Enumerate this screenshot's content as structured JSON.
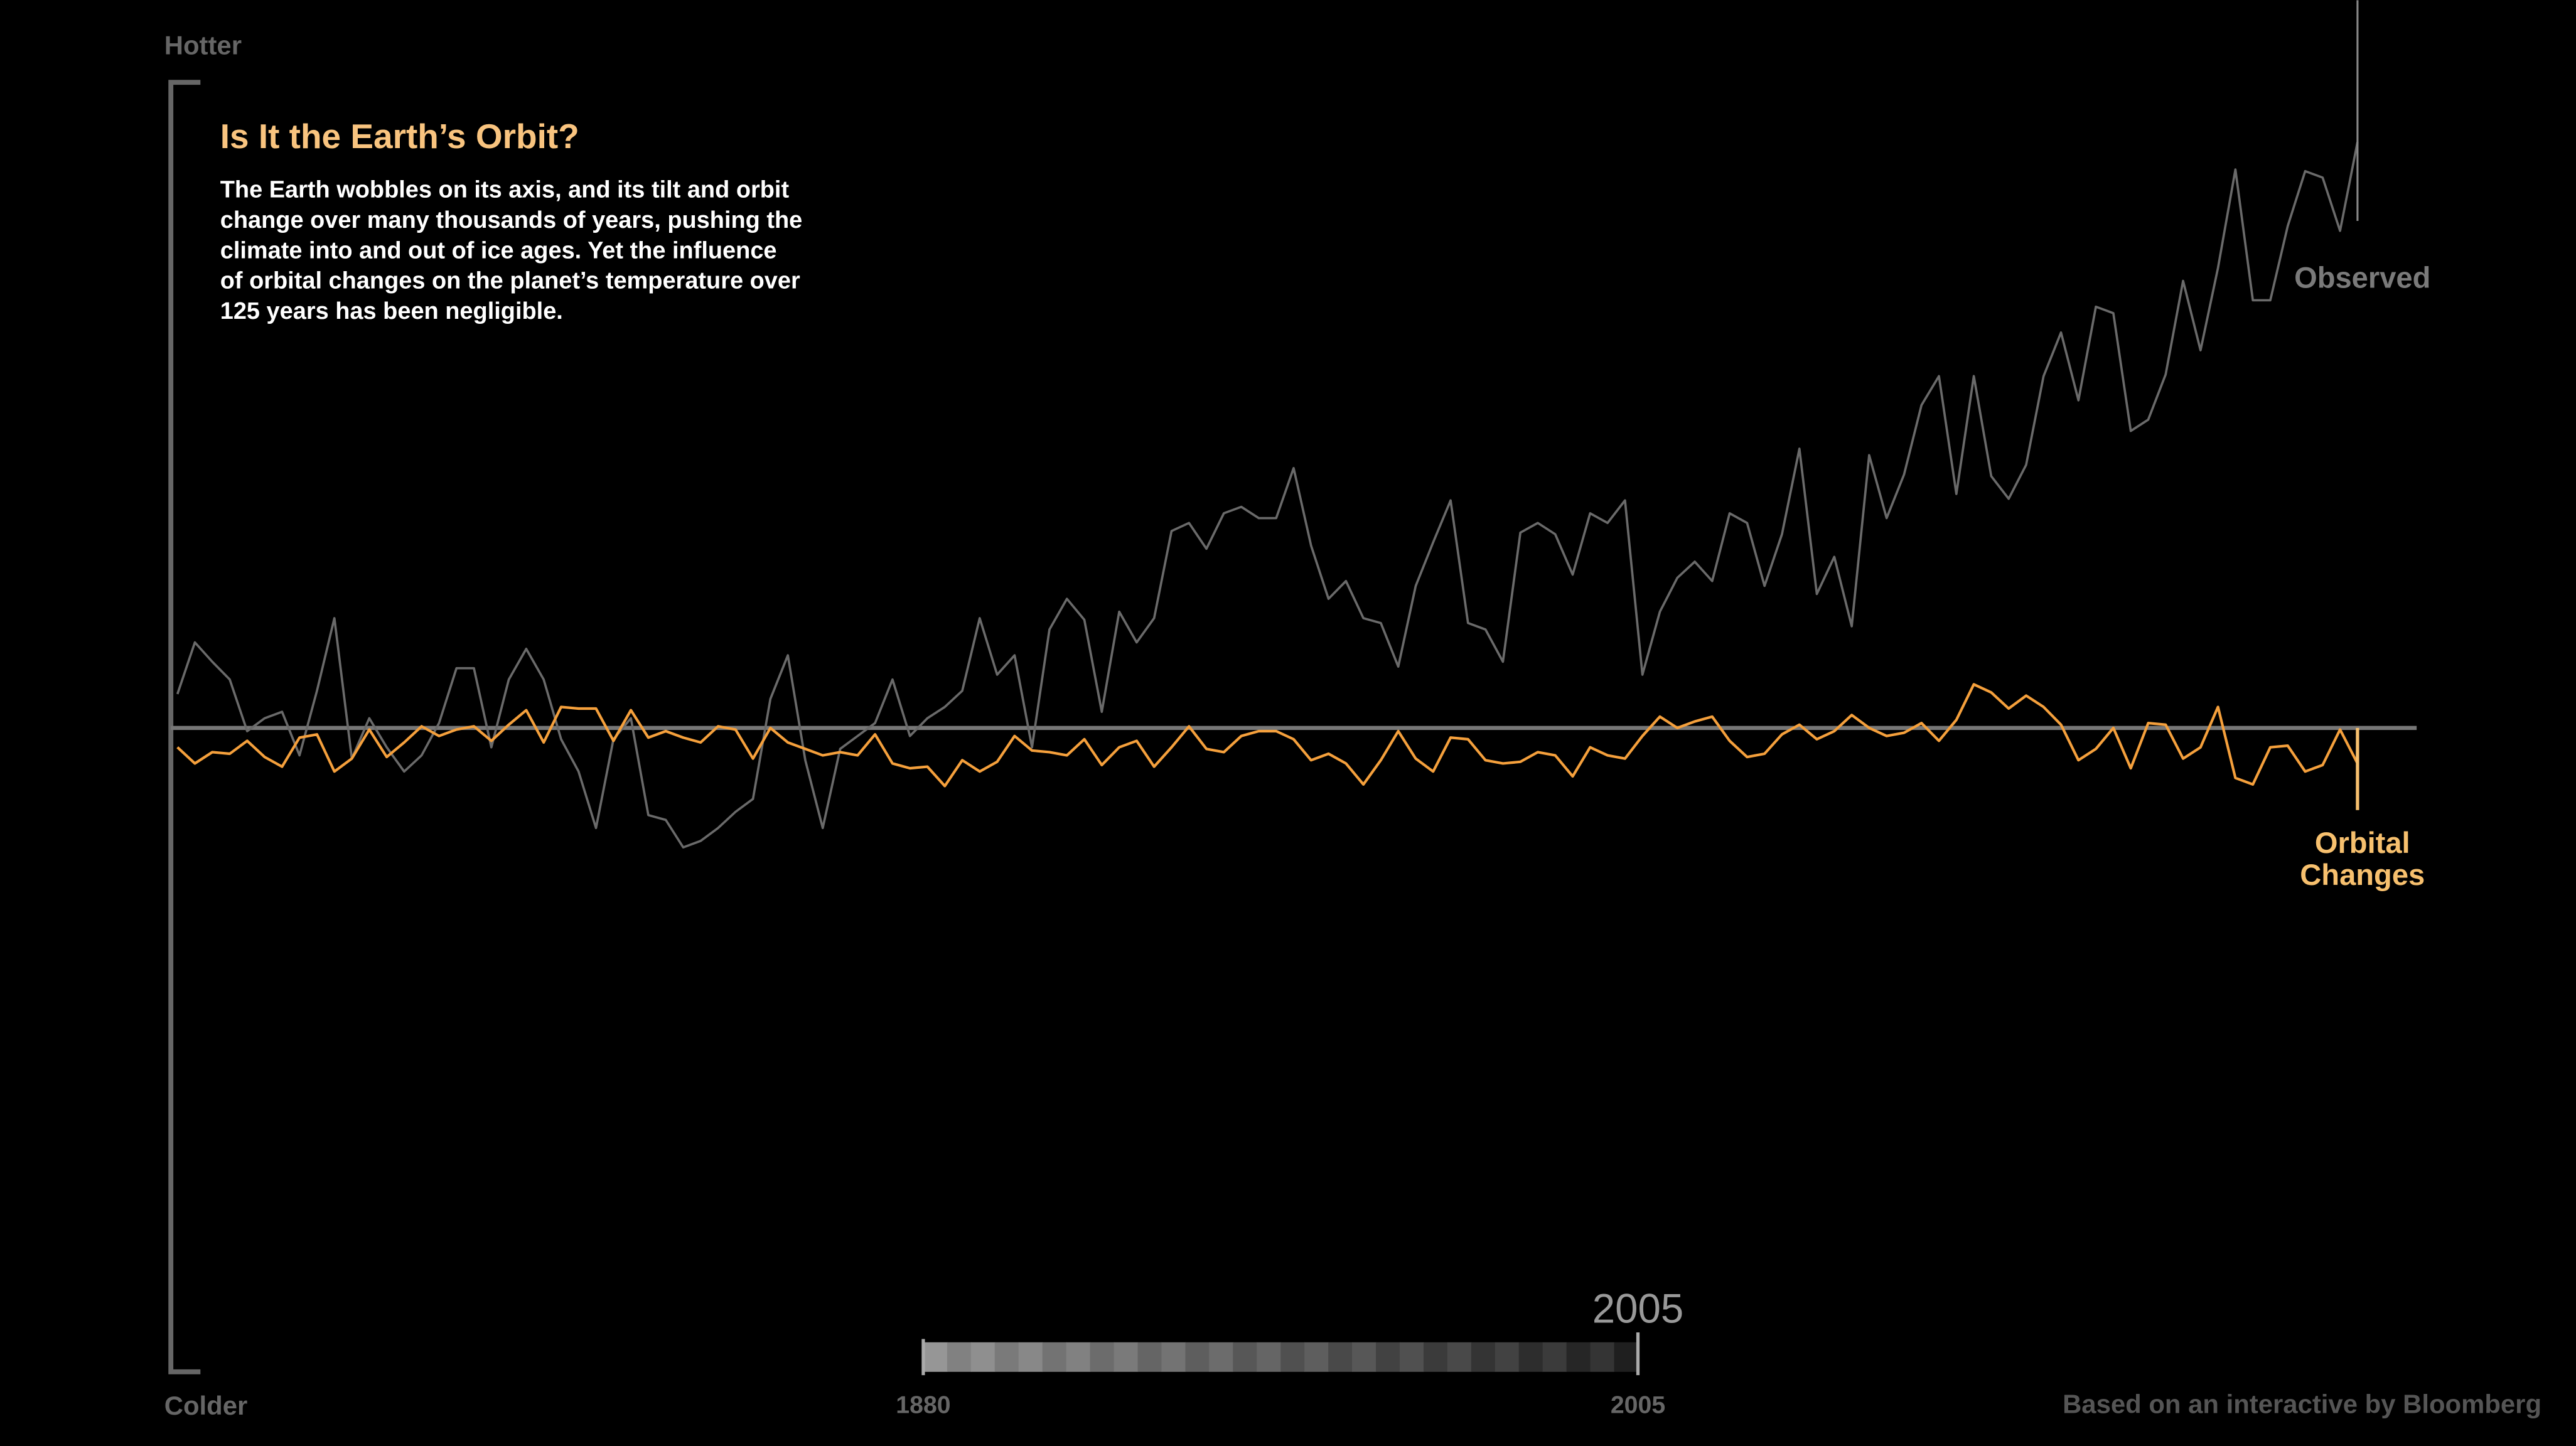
{
  "chart_data": {
    "type": "line",
    "title": "Is It the Earth’s Orbit?",
    "description_lines": [
      "The Earth wobbles on its axis, and its tilt and orbit",
      "change over many thousands of years, pushing the",
      "climate into and out of ice ages.  Yet the influence",
      "of orbital changes on the planet’s temperature over",
      "125 years has been negligible."
    ],
    "y_top_label": "Hotter",
    "y_bottom_label": "Colder",
    "credit": "Based on an interactive by Bloomberg",
    "slider": {
      "min_label": 1880,
      "max_label": 2005,
      "current": 2005
    },
    "xlim": [
      1880,
      2005
    ],
    "ylim": [
      -4,
      4
    ],
    "yticks": [
      0
    ],
    "x": [
      1880,
      1881,
      1882,
      1883,
      1884,
      1885,
      1886,
      1887,
      1888,
      1889,
      1890,
      1891,
      1892,
      1893,
      1894,
      1895,
      1896,
      1897,
      1898,
      1899,
      1900,
      1901,
      1902,
      1903,
      1904,
      1905,
      1906,
      1907,
      1908,
      1909,
      1910,
      1911,
      1912,
      1913,
      1914,
      1915,
      1916,
      1917,
      1918,
      1919,
      1920,
      1921,
      1922,
      1923,
      1924,
      1925,
      1926,
      1927,
      1928,
      1929,
      1930,
      1931,
      1932,
      1933,
      1934,
      1935,
      1936,
      1937,
      1938,
      1939,
      1940,
      1941,
      1942,
      1943,
      1944,
      1945,
      1946,
      1947,
      1948,
      1949,
      1950,
      1951,
      1952,
      1953,
      1954,
      1955,
      1956,
      1957,
      1958,
      1959,
      1960,
      1961,
      1962,
      1963,
      1964,
      1965,
      1966,
      1967,
      1968,
      1969,
      1970,
      1971,
      1972,
      1973,
      1974,
      1975,
      1976,
      1977,
      1978,
      1979,
      1980,
      1981,
      1982,
      1983,
      1984,
      1985,
      1986,
      1987,
      1988,
      1989,
      1990,
      1991,
      1992,
      1993,
      1994,
      1995,
      1996,
      1997,
      1998,
      1999,
      2000,
      2001,
      2002,
      2003,
      2004,
      2005
    ],
    "series": [
      {
        "name": "Observed",
        "color": "#6a6a6a",
        "label_color": "#7a7a7a",
        "label_lines": [
          "Observed"
        ],
        "values": [
          0.21,
          0.53,
          0.41,
          0.3,
          -0.02,
          0.06,
          0.1,
          -0.17,
          0.23,
          0.68,
          -0.19,
          0.06,
          -0.12,
          -0.27,
          -0.17,
          0.03,
          0.37,
          0.37,
          -0.12,
          0.3,
          0.49,
          0.3,
          -0.07,
          -0.27,
          -0.62,
          -0.07,
          0.06,
          -0.54,
          -0.57,
          -0.74,
          -0.7,
          -0.62,
          -0.52,
          -0.44,
          0.18,
          0.45,
          -0.2,
          -0.62,
          -0.13,
          -0.05,
          0.03,
          0.3,
          -0.05,
          0.06,
          0.13,
          0.23,
          0.68,
          0.33,
          0.45,
          -0.12,
          0.61,
          0.8,
          0.67,
          0.1,
          0.72,
          0.53,
          0.68,
          1.22,
          1.27,
          1.11,
          1.33,
          1.37,
          1.3,
          1.3,
          1.61,
          1.13,
          0.8,
          0.91,
          0.68,
          0.65,
          0.38,
          0.88,
          1.15,
          1.41,
          0.65,
          0.61,
          0.41,
          1.21,
          1.27,
          1.2,
          0.95,
          1.33,
          1.27,
          1.41,
          0.33,
          0.72,
          0.93,
          1.03,
          0.91,
          1.33,
          1.27,
          0.88,
          1.2,
          1.73,
          0.83,
          1.06,
          0.63,
          1.69,
          1.3,
          1.57,
          2.0,
          2.18,
          1.45,
          2.18,
          1.56,
          1.42,
          1.63,
          2.18,
          2.45,
          2.03,
          2.61,
          2.57,
          1.84,
          1.91,
          2.19,
          2.77,
          2.34,
          2.85,
          3.46,
          2.65,
          2.65,
          3.11,
          3.45,
          3.41,
          3.08,
          3.63
        ]
      },
      {
        "name": "Orbital Changes",
        "color": "#f5a03c",
        "label_color": "#f7c06e",
        "label_lines": [
          "Orbital",
          "Changes"
        ],
        "values": [
          -0.12,
          -0.22,
          -0.15,
          -0.16,
          -0.08,
          -0.18,
          -0.24,
          -0.06,
          -0.04,
          -0.27,
          -0.19,
          -0.01,
          -0.18,
          -0.09,
          0.01,
          -0.05,
          -0.01,
          0.01,
          -0.08,
          0.02,
          0.11,
          -0.09,
          0.13,
          0.12,
          0.12,
          -0.08,
          0.11,
          -0.06,
          -0.02,
          -0.06,
          -0.09,
          0.01,
          -0.01,
          -0.19,
          0,
          -0.09,
          -0.13,
          -0.17,
          -0.15,
          -0.17,
          -0.04,
          -0.22,
          -0.25,
          -0.24,
          -0.36,
          -0.2,
          -0.27,
          -0.21,
          -0.05,
          -0.14,
          -0.15,
          -0.17,
          -0.07,
          -0.23,
          -0.12,
          -0.08,
          -0.24,
          -0.12,
          0.01,
          -0.13,
          -0.15,
          -0.05,
          -0.02,
          -0.02,
          -0.07,
          -0.2,
          -0.16,
          -0.22,
          -0.35,
          -0.2,
          -0.02,
          -0.19,
          -0.27,
          -0.06,
          -0.07,
          -0.2,
          -0.22,
          -0.21,
          -0.15,
          -0.17,
          -0.3,
          -0.12,
          -0.17,
          -0.19,
          -0.05,
          0.07,
          0,
          0.04,
          0.07,
          -0.08,
          -0.18,
          -0.16,
          -0.04,
          0.02,
          -0.07,
          -0.02,
          0.08,
          0,
          -0.05,
          -0.03,
          0.03,
          -0.08,
          0.05,
          0.27,
          0.22,
          0.12,
          0.2,
          0.13,
          0.02,
          -0.2,
          -0.13,
          0,
          -0.25,
          0.03,
          0.02,
          -0.19,
          -0.12,
          0.13,
          -0.31,
          -0.35,
          -0.12,
          -0.11,
          -0.27,
          -0.23,
          -0.01,
          -0.22
        ]
      }
    ]
  }
}
